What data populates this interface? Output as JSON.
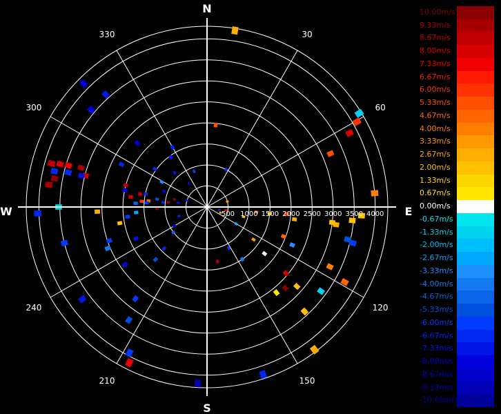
{
  "chart_data": {
    "type": "polar_scatter",
    "title": "",
    "directions": {
      "n": "N",
      "e": "E",
      "s": "S",
      "w": "W"
    },
    "angle_labels": [
      "30",
      "60",
      "120",
      "150",
      "210",
      "240",
      "300",
      "330"
    ],
    "angle_label_values": [
      30,
      60,
      120,
      150,
      210,
      240,
      300,
      330
    ],
    "range_labels": [
      "500",
      "1000",
      "1500",
      "2000",
      "2500",
      "3000",
      "3500",
      "4000"
    ],
    "range_max": 4300,
    "grid": true,
    "legend_placement": "right",
    "colorbar": {
      "labels": [
        "10.00m/s",
        "9.33m/s",
        "8.67m/s",
        "8.00m/s",
        "7.33m/s",
        "6.67m/s",
        "6.00m/s",
        "5.33m/s",
        "4.67m/s",
        "4.00m/s",
        "3.33m/s",
        "2.67m/s",
        "2.00m/s",
        "1.33m/s",
        "0.67m/s",
        "0.00m/s",
        "-0.67m/s",
        "-1.33m/s",
        "-2.00m/s",
        "-2.67m/s",
        "-3.33m/s",
        "-4.00m/s",
        "-4.67m/s",
        "-5.33m/s",
        "-6.00m/s",
        "-6.67m/s",
        "-7.33m/s",
        "-8.00m/s",
        "-8.67m/s",
        "-9.33m/s",
        "-10.00m/s"
      ],
      "colors": [
        "#8B0000",
        "#A80000",
        "#C00000",
        "#D80000",
        "#F00000",
        "#FF1A00",
        "#FF3300",
        "#FF5000",
        "#FF6600",
        "#FF7F00",
        "#FF9900",
        "#FFAD00",
        "#FFC000",
        "#FFD700",
        "#FFE600",
        "#FFFFFF",
        "#00E5EE",
        "#00D2F0",
        "#00BFFF",
        "#00A8FF",
        "#1E90FF",
        "#1478F0",
        "#0A64E6",
        "#0050DC",
        "#003CFF",
        "#0028F0",
        "#0014E6",
        "#0000DC",
        "#0000C8",
        "#0000B4",
        "#00009B"
      ]
    },
    "points": [
      {
        "az": 9,
        "range": 4250,
        "v": 2.67
      },
      {
        "az": 58.4,
        "range": 4250,
        "v": -1.33
      },
      {
        "az": 60.4,
        "range": 4100,
        "v": 6.0
      },
      {
        "az": 62.6,
        "range": 3820,
        "v": 8.0
      },
      {
        "az": 66.6,
        "range": 3200,
        "v": 5.33
      },
      {
        "az": 85.3,
        "range": 4000,
        "v": 4.0
      },
      {
        "az": 93.2,
        "range": 3680,
        "v": 2.0
      },
      {
        "az": 95.3,
        "range": 3470,
        "v": 2.0
      },
      {
        "az": 97.8,
        "range": 3100,
        "v": 2.67
      },
      {
        "az": 97.0,
        "range": 3000,
        "v": 2.0
      },
      {
        "az": 103.9,
        "range": 3570,
        "v": -6.0
      },
      {
        "az": 115.9,
        "range": 3250,
        "v": 4.0
      },
      {
        "az": 118.6,
        "range": 3730,
        "v": 4.67
      },
      {
        "az": 103.0,
        "range": 3430,
        "v": -5.33
      },
      {
        "az": 126.5,
        "range": 3370,
        "v": -1.33
      },
      {
        "az": 131.5,
        "range": 2850,
        "v": 2.0
      },
      {
        "az": 136.0,
        "range": 2680,
        "v": 10.0
      },
      {
        "az": 130.0,
        "range": 2450,
        "v": 8.0
      },
      {
        "az": 143.0,
        "range": 4250,
        "v": 2.67
      },
      {
        "az": 141.0,
        "range": 2620,
        "v": 0.67
      },
      {
        "az": 129.0,
        "range": 1760,
        "v": 0.0
      },
      {
        "az": 137.0,
        "range": 3400,
        "v": 2.0
      },
      {
        "az": 161.5,
        "range": 4200,
        "v": -6.67
      },
      {
        "az": 183.0,
        "range": 4200,
        "v": -9.33
      },
      {
        "az": 206.5,
        "range": 4140,
        "v": 7.33
      },
      {
        "az": 208.0,
        "range": 3930,
        "v": -6.0
      },
      {
        "az": 214.7,
        "range": 3270,
        "v": -5.33
      },
      {
        "az": 218.0,
        "range": 2770,
        "v": -6.0
      },
      {
        "az": 233.5,
        "range": 3690,
        "v": -7.33
      },
      {
        "az": 235.0,
        "range": 2380,
        "v": -8.0
      },
      {
        "az": 247.4,
        "range": 2560,
        "v": -4.0
      },
      {
        "az": 251.0,
        "range": 2460,
        "v": -6.0
      },
      {
        "az": 246.0,
        "range": 1850,
        "v": -7.33
      },
      {
        "az": 255.8,
        "range": 3500,
        "v": -6.0
      },
      {
        "az": 259.5,
        "range": 2110,
        "v": 2.0
      },
      {
        "az": 263.0,
        "range": 1900,
        "v": -6.0
      },
      {
        "az": 265.5,
        "range": 1690,
        "v": -2.67
      },
      {
        "az": 270.0,
        "range": 3530,
        "v": -1.33
      },
      {
        "az": 267.6,
        "range": 2610,
        "v": 2.67
      },
      {
        "az": 267.8,
        "range": 4030,
        "v": -6.67
      },
      {
        "az": 280.6,
        "range": 3690,
        "v": 10.0
      },
      {
        "az": 283.2,
        "range": 3730,
        "v": -6.67
      },
      {
        "az": 285.6,
        "range": 3840,
        "v": 8.67
      },
      {
        "az": 286.3,
        "range": 3640,
        "v": 8.0
      },
      {
        "az": 286.7,
        "range": 3440,
        "v": 7.33
      },
      {
        "az": 287.3,
        "range": 3140,
        "v": 9.33
      },
      {
        "az": 284.5,
        "range": 2980,
        "v": 8.0
      },
      {
        "az": 284.0,
        "range": 3400,
        "v": -6.67
      },
      {
        "az": 278.0,
        "range": 3800,
        "v": 9.33
      },
      {
        "az": 284.0,
        "range": 3080,
        "v": -7.33
      },
      {
        "az": 296.5,
        "range": 2270,
        "v": -6.67
      },
      {
        "az": 285.0,
        "range": 2000,
        "v": 8.67
      },
      {
        "az": 281.6,
        "range": 1990,
        "v": -8.0
      },
      {
        "az": 277.5,
        "range": 1830,
        "v": 8.0
      },
      {
        "az": 281.0,
        "range": 1620,
        "v": 8.67
      },
      {
        "az": 282.0,
        "range": 1490,
        "v": -6.67
      },
      {
        "az": 276.0,
        "range": 1400,
        "v": 4.67
      },
      {
        "az": 275.0,
        "range": 1560,
        "v": 6.0
      },
      {
        "az": 273.0,
        "range": 1700,
        "v": -4.67
      },
      {
        "az": 279.0,
        "range": 1200,
        "v": -5.33
      },
      {
        "az": 276.0,
        "range": 1050,
        "v": -6.67
      },
      {
        "az": 277.0,
        "range": 930,
        "v": 9.33
      },
      {
        "az": 283.0,
        "range": 800,
        "v": 10.0
      },
      {
        "az": 278.5,
        "range": 690,
        "v": -7.33
      },
      {
        "az": 268.0,
        "range": 1190,
        "v": 10.0
      },
      {
        "az": 274.0,
        "range": 1440,
        "v": -6.0
      },
      {
        "az": 306.0,
        "range": 1540,
        "v": -6.67
      },
      {
        "az": 310.0,
        "range": 3600,
        "v": -8.0
      },
      {
        "az": 315.0,
        "range": 4150,
        "v": -8.67
      },
      {
        "az": 318.0,
        "range": 3600,
        "v": -7.33
      },
      {
        "az": 312.5,
        "range": 2250,
        "v": -8.0
      },
      {
        "az": 330.0,
        "range": 1640,
        "v": -6.67
      },
      {
        "az": 324.0,
        "range": 1460,
        "v": -7.33
      },
      {
        "az": 6.0,
        "range": 1960,
        "v": 5.33
      },
      {
        "az": 27.0,
        "range": 1000,
        "v": -6.67
      },
      {
        "az": 113.0,
        "range": 350,
        "v": 3.33
      },
      {
        "az": 96.0,
        "range": 1180,
        "v": 4.67
      },
      {
        "az": 96.0,
        "range": 1500,
        "v": 2.0
      },
      {
        "az": 95.0,
        "range": 1900,
        "v": 6.0
      },
      {
        "az": 98.0,
        "range": 2100,
        "v": 2.67
      },
      {
        "az": 105.0,
        "range": 900,
        "v": 2.0
      },
      {
        "az": 120.0,
        "range": 800,
        "v": -2.0
      },
      {
        "az": 125.0,
        "range": 1350,
        "v": 3.33
      },
      {
        "az": 111.0,
        "range": 1950,
        "v": 4.67
      },
      {
        "az": 114.0,
        "range": 2220,
        "v": -3.33
      },
      {
        "az": 152.0,
        "range": 1100,
        "v": -6.0
      },
      {
        "az": 169.0,
        "range": 1320,
        "v": 9.33
      },
      {
        "az": 146.0,
        "range": 1500,
        "v": -4.0
      },
      {
        "az": 226.0,
        "range": 1420,
        "v": -6.67
      },
      {
        "az": 224.5,
        "range": 1750,
        "v": -5.33
      },
      {
        "az": 240.0,
        "range": 900,
        "v": -8.0
      },
      {
        "az": 252.0,
        "range": 700,
        "v": -6.67
      },
      {
        "az": 233.0,
        "range": 1000,
        "v": -4.67
      },
      {
        "az": 288.0,
        "range": 500,
        "v": -6.67
      },
      {
        "az": 299.0,
        "range": 1230,
        "v": -3.33
      },
      {
        "az": 290.0,
        "range": 1090,
        "v": -8.0
      },
      {
        "az": 322.0,
        "range": 700,
        "v": -8.67
      },
      {
        "az": 316.5,
        "range": 1120,
        "v": -7.33
      },
      {
        "az": 340.0,
        "range": 900,
        "v": -6.0
      },
      {
        "az": 75.0,
        "range": 500,
        "v": 3.33
      },
      {
        "az": 100.0,
        "range": 450,
        "v": 7.33
      },
      {
        "az": 103.0,
        "range": 300,
        "v": -6.67
      }
    ]
  }
}
